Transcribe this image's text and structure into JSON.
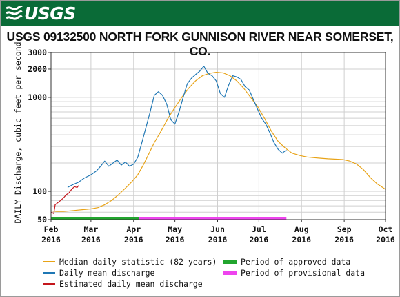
{
  "header": {
    "logo_text": "USGS"
  },
  "chart_data": {
    "type": "line",
    "title": "USGS 09132500 NORTH FORK GUNNISON RIVER NEAR SOMERSET, CO.",
    "ylabel": "DAILY Discharge, cubic feet per second",
    "y_scale": "log",
    "ylim": [
      50,
      3000
    ],
    "y_ticks": [
      {
        "label": "3000",
        "value": 3000
      },
      {
        "label": "2000",
        "value": 2000
      },
      {
        "label": "1000",
        "value": 1000
      },
      {
        "label": "100",
        "value": 100
      },
      {
        "label": "50",
        "value": 50
      }
    ],
    "y_grid": [
      60,
      70,
      80,
      90,
      100,
      200,
      300,
      400,
      500,
      600,
      700,
      800,
      900,
      1000,
      2000,
      3000
    ],
    "xlim": [
      "2016-02-01",
      "2016-10-01"
    ],
    "x_ticks": [
      {
        "label": "Feb",
        "year": "2016",
        "date": "2016-02-01"
      },
      {
        "label": "Mar",
        "year": "2016",
        "date": "2016-03-01"
      },
      {
        "label": "Apr",
        "year": "2016",
        "date": "2016-04-01"
      },
      {
        "label": "May",
        "year": "2016",
        "date": "2016-05-01"
      },
      {
        "label": "Jun",
        "year": "2016",
        "date": "2016-06-01"
      },
      {
        "label": "Jul",
        "year": "2016",
        "date": "2016-07-01"
      },
      {
        "label": "Aug",
        "year": "2016",
        "date": "2016-08-01"
      },
      {
        "label": "Sep",
        "year": "2016",
        "date": "2016-09-01"
      },
      {
        "label": "Oct",
        "year": "2016",
        "date": "2016-10-01"
      }
    ],
    "series": [
      {
        "name": "Median daily statistic (82 years)",
        "color": "#e8a317",
        "points": [
          [
            "2016-02-01",
            62
          ],
          [
            "2016-02-05",
            61
          ],
          [
            "2016-02-10",
            61
          ],
          [
            "2016-02-15",
            62
          ],
          [
            "2016-02-20",
            63
          ],
          [
            "2016-02-25",
            64
          ],
          [
            "2016-03-01",
            65
          ],
          [
            "2016-03-06",
            67
          ],
          [
            "2016-03-11",
            72
          ],
          [
            "2016-03-16",
            80
          ],
          [
            "2016-03-21",
            92
          ],
          [
            "2016-03-26",
            108
          ],
          [
            "2016-03-31",
            128
          ],
          [
            "2016-04-04",
            150
          ],
          [
            "2016-04-08",
            190
          ],
          [
            "2016-04-12",
            250
          ],
          [
            "2016-04-16",
            330
          ],
          [
            "2016-04-21",
            440
          ],
          [
            "2016-04-26",
            600
          ],
          [
            "2016-05-01",
            780
          ],
          [
            "2016-05-06",
            1000
          ],
          [
            "2016-05-11",
            1250
          ],
          [
            "2016-05-16",
            1500
          ],
          [
            "2016-05-21",
            1700
          ],
          [
            "2016-05-26",
            1800
          ],
          [
            "2016-05-31",
            1850
          ],
          [
            "2016-06-05",
            1820
          ],
          [
            "2016-06-10",
            1700
          ],
          [
            "2016-06-15",
            1500
          ],
          [
            "2016-06-20",
            1250
          ],
          [
            "2016-06-25",
            1000
          ],
          [
            "2016-06-30",
            800
          ],
          [
            "2016-07-05",
            600
          ],
          [
            "2016-07-10",
            440
          ],
          [
            "2016-07-15",
            340
          ],
          [
            "2016-07-20",
            290
          ],
          [
            "2016-07-25",
            255
          ],
          [
            "2016-07-31",
            240
          ],
          [
            "2016-08-05",
            232
          ],
          [
            "2016-08-10",
            228
          ],
          [
            "2016-08-15",
            225
          ],
          [
            "2016-08-20",
            222
          ],
          [
            "2016-08-25",
            220
          ],
          [
            "2016-08-31",
            218
          ],
          [
            "2016-09-05",
            210
          ],
          [
            "2016-09-10",
            195
          ],
          [
            "2016-09-15",
            170
          ],
          [
            "2016-09-20",
            140
          ],
          [
            "2016-09-25",
            120
          ],
          [
            "2016-10-01",
            105
          ]
        ]
      },
      {
        "name": "Daily mean discharge",
        "color": "#1f77b4",
        "points": [
          [
            "2016-02-13",
            110
          ],
          [
            "2016-02-17",
            118
          ],
          [
            "2016-02-21",
            125
          ],
          [
            "2016-02-25",
            138
          ],
          [
            "2016-03-01",
            150
          ],
          [
            "2016-03-05",
            165
          ],
          [
            "2016-03-08",
            185
          ],
          [
            "2016-03-11",
            210
          ],
          [
            "2016-03-14",
            185
          ],
          [
            "2016-03-17",
            200
          ],
          [
            "2016-03-20",
            215
          ],
          [
            "2016-03-23",
            190
          ],
          [
            "2016-03-26",
            205
          ],
          [
            "2016-03-29",
            185
          ],
          [
            "2016-04-01",
            195
          ],
          [
            "2016-04-04",
            230
          ],
          [
            "2016-04-07",
            330
          ],
          [
            "2016-04-10",
            480
          ],
          [
            "2016-04-13",
            700
          ],
          [
            "2016-04-16",
            1050
          ],
          [
            "2016-04-19",
            1150
          ],
          [
            "2016-04-22",
            1050
          ],
          [
            "2016-04-25",
            850
          ],
          [
            "2016-04-28",
            580
          ],
          [
            "2016-05-01",
            520
          ],
          [
            "2016-05-04",
            700
          ],
          [
            "2016-05-07",
            1000
          ],
          [
            "2016-05-10",
            1400
          ],
          [
            "2016-05-13",
            1600
          ],
          [
            "2016-05-16",
            1750
          ],
          [
            "2016-05-19",
            1900
          ],
          [
            "2016-05-22",
            2150
          ],
          [
            "2016-05-25",
            1800
          ],
          [
            "2016-05-28",
            1700
          ],
          [
            "2016-05-31",
            1500
          ],
          [
            "2016-06-03",
            1100
          ],
          [
            "2016-06-06",
            1000
          ],
          [
            "2016-06-09",
            1350
          ],
          [
            "2016-06-12",
            1700
          ],
          [
            "2016-06-15",
            1650
          ],
          [
            "2016-06-18",
            1550
          ],
          [
            "2016-06-21",
            1300
          ],
          [
            "2016-06-24",
            1200
          ],
          [
            "2016-06-27",
            950
          ],
          [
            "2016-06-30",
            750
          ],
          [
            "2016-07-03",
            600
          ],
          [
            "2016-07-06",
            520
          ],
          [
            "2016-07-09",
            420
          ],
          [
            "2016-07-12",
            330
          ],
          [
            "2016-07-15",
            280
          ],
          [
            "2016-07-18",
            255
          ],
          [
            "2016-07-21",
            275
          ]
        ]
      },
      {
        "name": "Estimated daily mean discharge",
        "color": "#c4161c",
        "points": [
          [
            "2016-02-01",
            60
          ],
          [
            "2016-02-03",
            58
          ],
          [
            "2016-02-04",
            72
          ],
          [
            "2016-02-06",
            76
          ],
          [
            "2016-02-08",
            80
          ],
          [
            "2016-02-10",
            85
          ],
          [
            "2016-02-12",
            92
          ],
          [
            "2016-02-14",
            96
          ],
          [
            "2016-02-16",
            105
          ],
          [
            "2016-02-18",
            112
          ],
          [
            "2016-02-20",
            110
          ],
          [
            "2016-02-21",
            115
          ]
        ]
      }
    ],
    "periods": [
      {
        "name": "Period of approved data",
        "color": "#22a52e",
        "start": "2016-02-01",
        "end": "2016-04-05"
      },
      {
        "name": "Period of provisional data",
        "color": "#ee44ee",
        "start": "2016-04-05",
        "end": "2016-07-21"
      }
    ]
  }
}
